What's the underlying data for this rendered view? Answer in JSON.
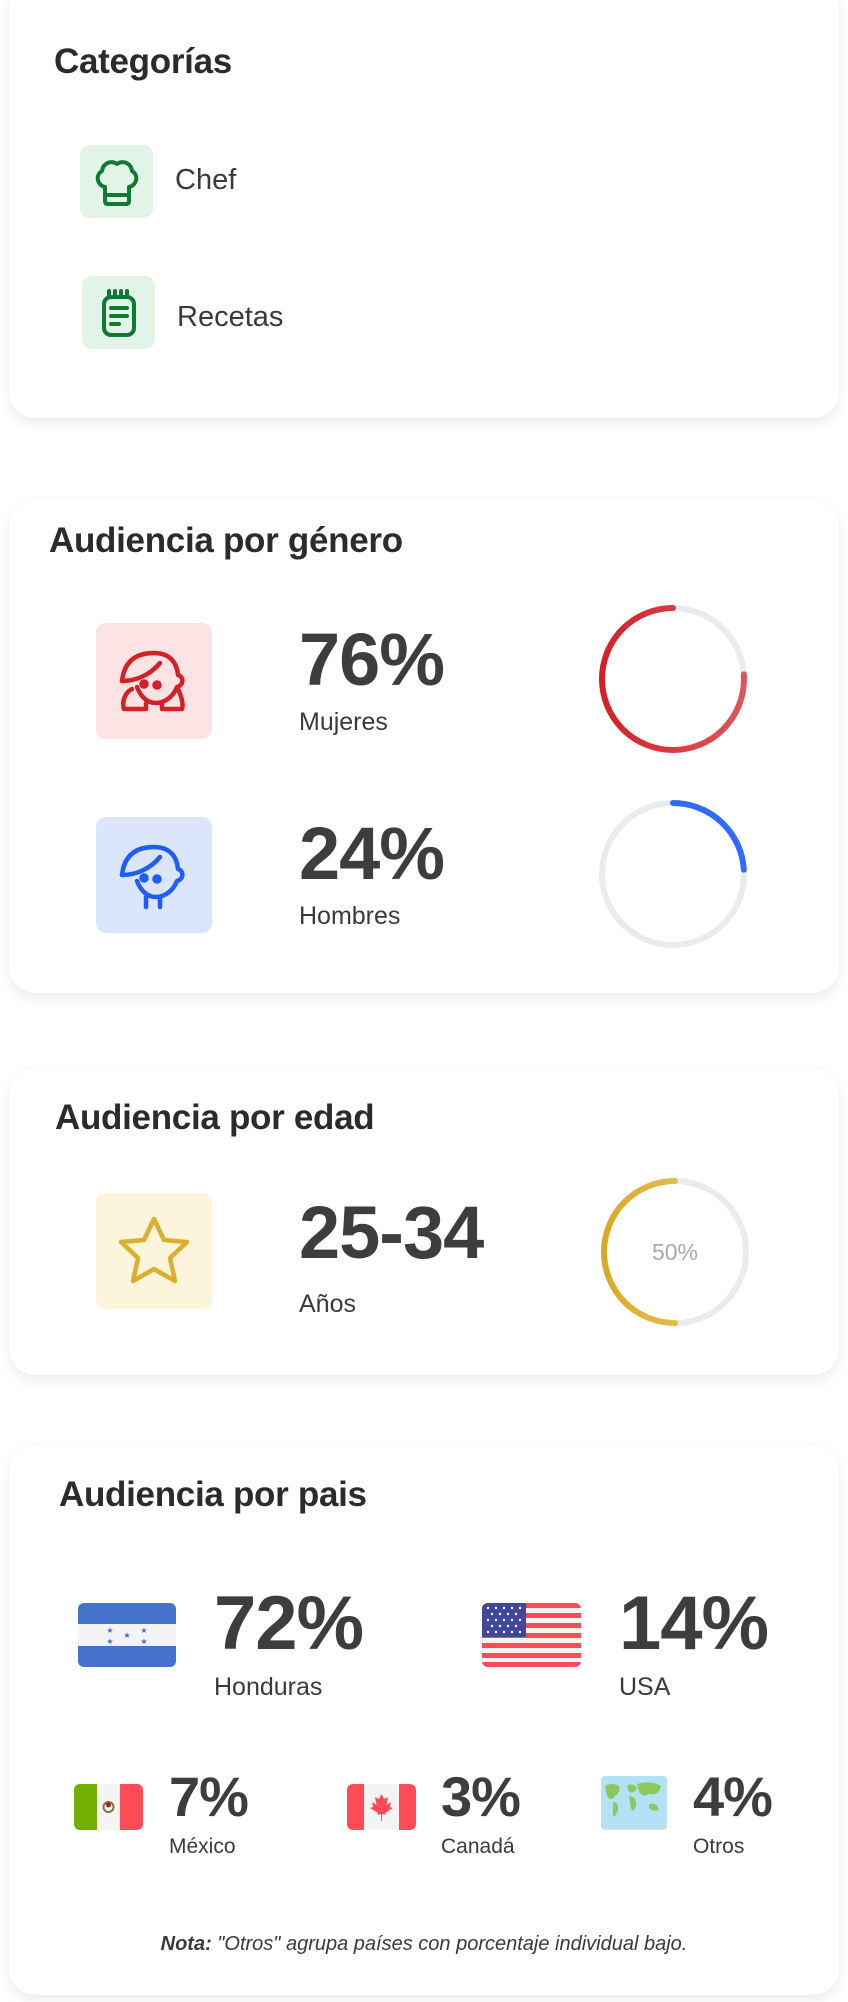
{
  "categories": {
    "title": "Categorías",
    "items": [
      {
        "label": "Chef",
        "icon": "chef-hat-icon"
      },
      {
        "label": "Recetas",
        "icon": "notepad-icon"
      }
    ],
    "accent": "#0f7a34"
  },
  "gender": {
    "title": "Audiencia por género",
    "items": [
      {
        "value": "76%",
        "label": "Mujeres",
        "percent": 76,
        "color": "#d42027",
        "icon": "woman-icon"
      },
      {
        "value": "24%",
        "label": "Hombres",
        "percent": 24,
        "color": "#2f6bff",
        "icon": "man-icon"
      }
    ]
  },
  "age": {
    "title": "Audiencia por edad",
    "value": "25-34",
    "label": "Años",
    "percent": 50,
    "ring_label": "50%",
    "color": "#dcae2c",
    "icon": "star-icon"
  },
  "country": {
    "title": "Audiencia por pais",
    "items": [
      {
        "value": "72%",
        "label": "Honduras",
        "icon": "honduras-flag-icon"
      },
      {
        "value": "14%",
        "label": "USA",
        "icon": "usa-flag-icon"
      },
      {
        "value": "7%",
        "label": "México",
        "icon": "mexico-flag-icon"
      },
      {
        "value": "3%",
        "label": "Canadá",
        "icon": "canada-flag-icon"
      },
      {
        "value": "4%",
        "label": "Otros",
        "icon": "world-map-icon"
      }
    ],
    "note_label": "Nota:",
    "note_text": " \"Otros\" agrupa países con porcentaje individual bajo."
  }
}
